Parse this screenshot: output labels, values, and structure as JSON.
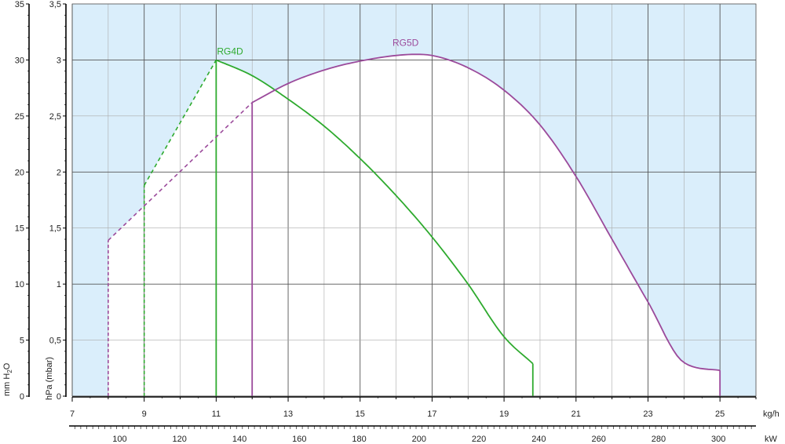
{
  "colors": {
    "background_fill": "#daeefb",
    "grid_major": "#555555",
    "grid_minor": "#aaaaaa",
    "axis": "#000000"
  },
  "chart_data": {
    "type": "line",
    "title": "",
    "xlabel": "kg/h",
    "xlim": [
      7,
      26
    ],
    "x_ticks": [
      7,
      9,
      11,
      13,
      15,
      17,
      19,
      21,
      23,
      25
    ],
    "secondary_x": {
      "label": "kW",
      "ticks": [
        100,
        120,
        140,
        160,
        180,
        200,
        220,
        240,
        260,
        280,
        300
      ],
      "kg_per_kw": 0.08319
    },
    "y_left": {
      "label": "mm H2O",
      "label_main": "mm H",
      "label_sub": "2",
      "label_end": "O",
      "ticks": [
        0,
        5,
        10,
        15,
        20,
        25,
        30,
        35
      ],
      "ylim": [
        0,
        35
      ]
    },
    "y_right": {
      "label": "hPa (mbar)",
      "ticks": [
        "0",
        "0,5",
        "1",
        "1,5",
        "2",
        "2,5",
        "3",
        "3,5"
      ],
      "ylim": [
        0,
        3.5
      ]
    },
    "grid": true,
    "series": [
      {
        "name": "RG4D",
        "color": "#2eaa2e",
        "dashed": [
          [
            9,
            1.88
          ],
          [
            11,
            3.0
          ]
        ],
        "curve": [
          [
            11,
            3.0
          ],
          [
            12,
            2.86
          ],
          [
            13,
            2.65
          ],
          [
            14,
            2.41
          ],
          [
            15,
            2.12
          ],
          [
            16,
            1.79
          ],
          [
            17,
            1.42
          ],
          [
            18,
            1.0
          ],
          [
            19,
            0.53
          ],
          [
            19.8,
            0.29
          ]
        ],
        "x_min": 9,
        "x_max": 19.8,
        "firing_x": 11
      },
      {
        "name": "RG5D",
        "color": "#9b4a9b",
        "dashed": [
          [
            8,
            1.39
          ],
          [
            12,
            2.62
          ]
        ],
        "curve": [
          [
            12,
            2.62
          ],
          [
            13,
            2.79
          ],
          [
            14,
            2.91
          ],
          [
            15,
            2.99
          ],
          [
            16,
            3.04
          ],
          [
            16.5,
            3.05
          ],
          [
            17,
            3.04
          ],
          [
            18,
            2.93
          ],
          [
            19,
            2.73
          ],
          [
            20,
            2.42
          ],
          [
            21,
            1.96
          ],
          [
            22,
            1.4
          ],
          [
            23,
            0.84
          ],
          [
            24,
            0.3
          ],
          [
            25,
            0.23
          ]
        ],
        "x_min": 8,
        "x_max": 25,
        "firing_x": 12
      }
    ]
  }
}
